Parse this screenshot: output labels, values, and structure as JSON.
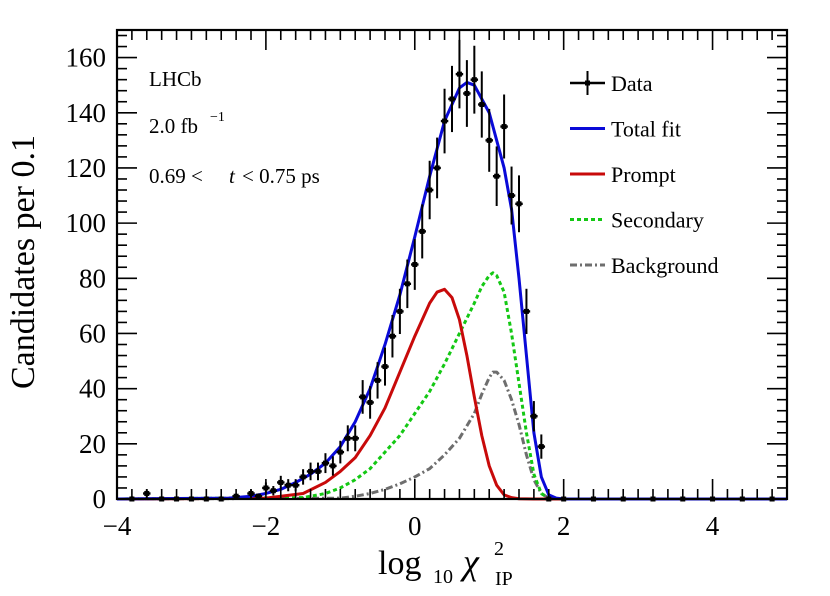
{
  "chart_data": {
    "type": "line",
    "title": "",
    "xlabel": {
      "main": "log",
      "sub1": "10",
      "chi": "χ",
      "sup": "2",
      "sub2": "IP"
    },
    "ylabel": "Candidates per 0.1",
    "xlim": [
      -4,
      5
    ],
    "ylim": [
      0,
      170
    ],
    "x_ticks": [
      -4,
      -2,
      0,
      2,
      4
    ],
    "x_tick_labels": [
      "−4",
      "−2",
      "0",
      "2",
      "4"
    ],
    "y_ticks": [
      0,
      20,
      40,
      60,
      80,
      100,
      120,
      140,
      160
    ],
    "y_tick_labels": [
      "0",
      "20",
      "40",
      "60",
      "80",
      "100",
      "120",
      "140",
      "160"
    ],
    "annotations": {
      "experiment": "LHCb",
      "lumi_value": "2.0 fb",
      "lumi_sup": "−1",
      "time_range_low": "0.69 <",
      "time_var": "t",
      "time_range_high": "< 0.75 ps"
    },
    "legend": {
      "position": "top-right",
      "entries": [
        {
          "label": "Data",
          "style": "errorbar",
          "color": "#000000"
        },
        {
          "label": "Total fit",
          "style": "solid",
          "color": "#0a0ad8"
        },
        {
          "label": "Prompt",
          "style": "solid",
          "color": "#c80a0a"
        },
        {
          "label": "Secondary",
          "style": "dotted",
          "color": "#14c814"
        },
        {
          "label": "Background",
          "style": "dashdot",
          "color": "#6e6e6e"
        }
      ]
    },
    "data_points": {
      "bin_width": 0.1,
      "x": [
        -3.8,
        -3.6,
        -3.4,
        -3.2,
        -3.0,
        -2.8,
        -2.6,
        -2.4,
        -2.2,
        -2.1,
        -2.0,
        -1.9,
        -1.8,
        -1.7,
        -1.6,
        -1.5,
        -1.4,
        -1.3,
        -1.2,
        -1.1,
        -1.0,
        -0.9,
        -0.8,
        -0.7,
        -0.6,
        -0.5,
        -0.4,
        -0.3,
        -0.2,
        -0.1,
        0.0,
        0.1,
        0.2,
        0.3,
        0.4,
        0.5,
        0.6,
        0.7,
        0.8,
        0.9,
        1.0,
        1.1,
        1.2,
        1.3,
        1.4,
        1.5,
        1.6,
        1.7,
        1.8,
        2.0,
        2.4,
        2.8,
        3.2,
        3.6,
        4.0,
        4.4,
        4.8
      ],
      "y": [
        0,
        2,
        0,
        0,
        0,
        0,
        0,
        1,
        2,
        1,
        4,
        3,
        6,
        5,
        5,
        8,
        10,
        10,
        13,
        12,
        17,
        22,
        22,
        37,
        35,
        43,
        48,
        59,
        68,
        78,
        85,
        97,
        112,
        120,
        137,
        145,
        154,
        147,
        152,
        143,
        130,
        117,
        135,
        110,
        107,
        68,
        30,
        19,
        0,
        0,
        0,
        0,
        0,
        0,
        0,
        0,
        0
      ],
      "err": [
        1,
        1.5,
        1,
        1,
        1,
        1,
        1,
        1,
        1.5,
        1,
        2,
        1.7,
        2.4,
        2.2,
        2.2,
        2.8,
        3.2,
        3.2,
        3.6,
        3.5,
        4.1,
        4.7,
        4.7,
        6.1,
        5.9,
        6.6,
        6.9,
        7.7,
        8.2,
        8.8,
        9.2,
        9.8,
        10.6,
        11,
        11.7,
        12,
        12.4,
        12.1,
        12.3,
        12,
        11.4,
        10.8,
        11.6,
        10.5,
        10.3,
        8.2,
        5.5,
        4.4,
        0.5,
        0.5,
        0.5,
        0.5,
        0.5,
        0.5,
        0.5,
        0.5,
        0.5
      ]
    },
    "series": [
      {
        "name": "Total fit",
        "x": [
          -4.0,
          -2.5,
          -2.2,
          -2.0,
          -1.8,
          -1.6,
          -1.4,
          -1.2,
          -1.0,
          -0.8,
          -0.6,
          -0.4,
          -0.2,
          0.0,
          0.2,
          0.4,
          0.6,
          0.7,
          0.8,
          1.0,
          1.2,
          1.3,
          1.4,
          1.5,
          1.6,
          1.7,
          1.8,
          1.9,
          2.0,
          3.0,
          5.0
        ],
        "y": [
          0,
          0.3,
          1,
          2,
          3.5,
          6,
          9,
          13,
          19,
          28,
          40,
          56,
          74,
          95,
          117,
          137,
          149,
          151,
          150,
          140,
          120,
          105,
          80,
          52,
          24,
          8,
          1.5,
          0.3,
          0,
          0,
          0
        ]
      },
      {
        "name": "Prompt",
        "x": [
          -4.0,
          -2.0,
          -1.5,
          -1.2,
          -1.0,
          -0.8,
          -0.6,
          -0.4,
          -0.2,
          0.0,
          0.2,
          0.3,
          0.4,
          0.5,
          0.6,
          0.7,
          0.8,
          0.9,
          1.0,
          1.1,
          1.2,
          1.3,
          1.4,
          1.6,
          5.0
        ],
        "y": [
          0,
          0.3,
          2,
          6,
          10,
          15,
          23,
          33,
          46,
          59,
          71,
          75,
          76,
          73,
          65,
          52,
          37,
          23,
          12,
          5,
          1.5,
          0.5,
          0.1,
          0,
          0
        ]
      },
      {
        "name": "Secondary",
        "x": [
          -4.0,
          -1.5,
          -1.2,
          -1.0,
          -0.8,
          -0.6,
          -0.4,
          -0.2,
          0.0,
          0.2,
          0.4,
          0.6,
          0.8,
          0.9,
          1.0,
          1.05,
          1.1,
          1.2,
          1.3,
          1.4,
          1.5,
          1.6,
          1.7,
          1.8,
          2.0,
          5.0
        ],
        "y": [
          0,
          0.5,
          2,
          4,
          7,
          11,
          17,
          23,
          31,
          39,
          49,
          60,
          71,
          77,
          81,
          82,
          81,
          75,
          60,
          42,
          24,
          9,
          2,
          0.3,
          0,
          0
        ]
      },
      {
        "name": "Background",
        "x": [
          -4.0,
          -1.0,
          -0.8,
          -0.6,
          -0.4,
          -0.2,
          0.0,
          0.2,
          0.4,
          0.6,
          0.8,
          0.9,
          1.0,
          1.05,
          1.1,
          1.2,
          1.3,
          1.4,
          1.5,
          1.6,
          1.7,
          1.8,
          2.0,
          5.0
        ],
        "y": [
          0,
          0.3,
          1,
          2,
          3.5,
          5.5,
          8,
          11,
          16,
          22,
          31,
          38,
          44,
          46,
          46,
          43,
          36,
          27,
          16,
          7,
          2,
          0.3,
          0,
          0
        ]
      }
    ]
  }
}
